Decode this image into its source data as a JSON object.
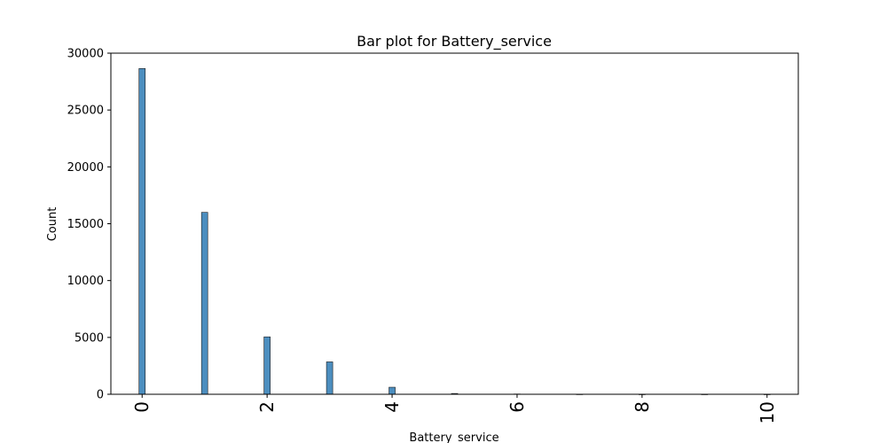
{
  "chart_data": {
    "type": "bar",
    "title": "Bar plot for Battery_service",
    "xlabel": "Battery_service",
    "ylabel": "Count",
    "xlim": [
      -0.5,
      10.5
    ],
    "ylim": [
      0,
      30000
    ],
    "xticks": [
      0,
      2,
      4,
      6,
      8,
      10
    ],
    "yticks": [
      0,
      5000,
      10000,
      15000,
      20000,
      25000,
      30000
    ],
    "bar_color": "#4c8ebf",
    "bar_edge_color": "#1a1a1a",
    "x": [
      0,
      1,
      2,
      3,
      4,
      5,
      6,
      7,
      8,
      9,
      10
    ],
    "values": [
      28650,
      16000,
      5050,
      2850,
      620,
      70,
      25,
      5,
      2,
      1,
      1
    ],
    "grid": false,
    "legend": "none"
  }
}
